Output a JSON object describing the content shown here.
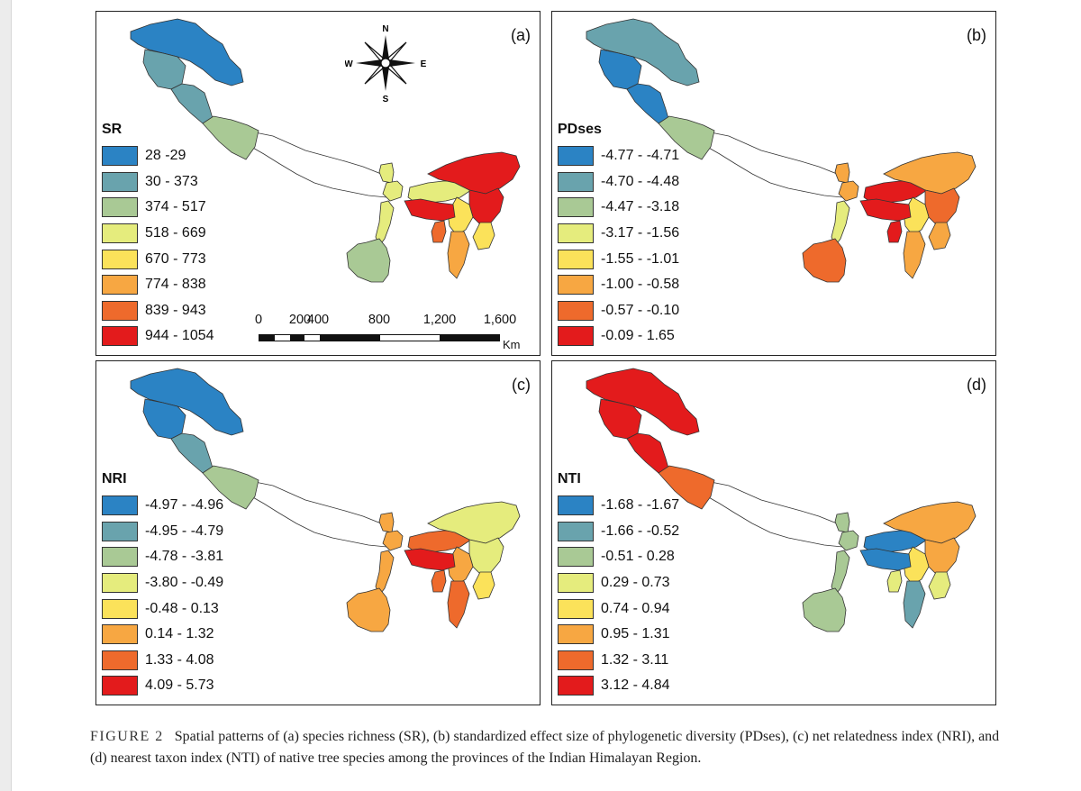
{
  "panels": [
    {
      "id": "a",
      "label": "(a)",
      "legend_title": "SR",
      "legend": [
        "28 -29",
        "30 - 373",
        "374 - 517",
        "518 - 669",
        "670 - 773",
        "774 - 838",
        "839 - 943",
        "944 - 1054"
      ],
      "region_classes": [
        0,
        1,
        1,
        2,
        3,
        3,
        3,
        2,
        3,
        7,
        7,
        4,
        4,
        7,
        6,
        5
      ]
    },
    {
      "id": "b",
      "label": "(b)",
      "legend_title": "PDses",
      "legend": [
        "-4.77 - -4.71",
        "-4.70 - -4.48",
        "-4.47 - -3.18",
        "-3.17 - -1.56",
        "-1.55 - -1.01",
        "-1.00 - -0.58",
        "-0.57 - -0.10",
        "-0.09 - 1.65"
      ],
      "region_classes": [
        1,
        0,
        0,
        2,
        5,
        5,
        3,
        6,
        7,
        5,
        6,
        5,
        4,
        7,
        7,
        5
      ]
    },
    {
      "id": "c",
      "label": "(c)",
      "legend_title": "NRI",
      "legend": [
        "-4.97 - -4.96",
        "-4.95 - -4.79",
        "-4.78 - -3.81",
        "-3.80 - -0.49",
        "-0.48 - 0.13",
        "0.14 - 1.32",
        "1.33 - 4.08",
        "4.09 - 5.73"
      ],
      "region_classes": [
        0,
        0,
        1,
        2,
        5,
        5,
        5,
        5,
        6,
        3,
        3,
        4,
        5,
        7,
        6,
        6
      ]
    },
    {
      "id": "d",
      "label": "(d)",
      "legend_title": "NTI",
      "legend": [
        "-1.68 - -1.67",
        "-1.66 - -0.52",
        "-0.51 - 0.28",
        "0.29 - 0.73",
        "0.74 - 0.94",
        "0.95 - 1.31",
        "1.32 - 3.11",
        "3.12 - 4.84"
      ],
      "region_classes": [
        7,
        7,
        7,
        6,
        2,
        2,
        2,
        2,
        0,
        5,
        5,
        3,
        4,
        0,
        3,
        1
      ]
    }
  ],
  "colors": [
    "#2b83c4",
    "#69a3ad",
    "#a9c995",
    "#e5ec7d",
    "#fbe25a",
    "#f7a742",
    "#ee6a2c",
    "#e31b1c"
  ],
  "scale_bar": {
    "ticks": [
      "0",
      "200",
      "400",
      "800",
      "1,200",
      "1,600"
    ],
    "unit": "Km"
  },
  "compass": {
    "n": "N",
    "s": "S",
    "e": "E",
    "w": "W"
  },
  "caption": {
    "figure_label": "FIGURE",
    "figure_number": "2",
    "text": "Spatial patterns of (a) species richness (SR), (b) standardized effect size of phylogenetic diversity (PDses), (c) net relatedness index (NRI), and (d) nearest taxon index (NTI) of native tree species among the provinces of the Indian Himalayan Region."
  }
}
